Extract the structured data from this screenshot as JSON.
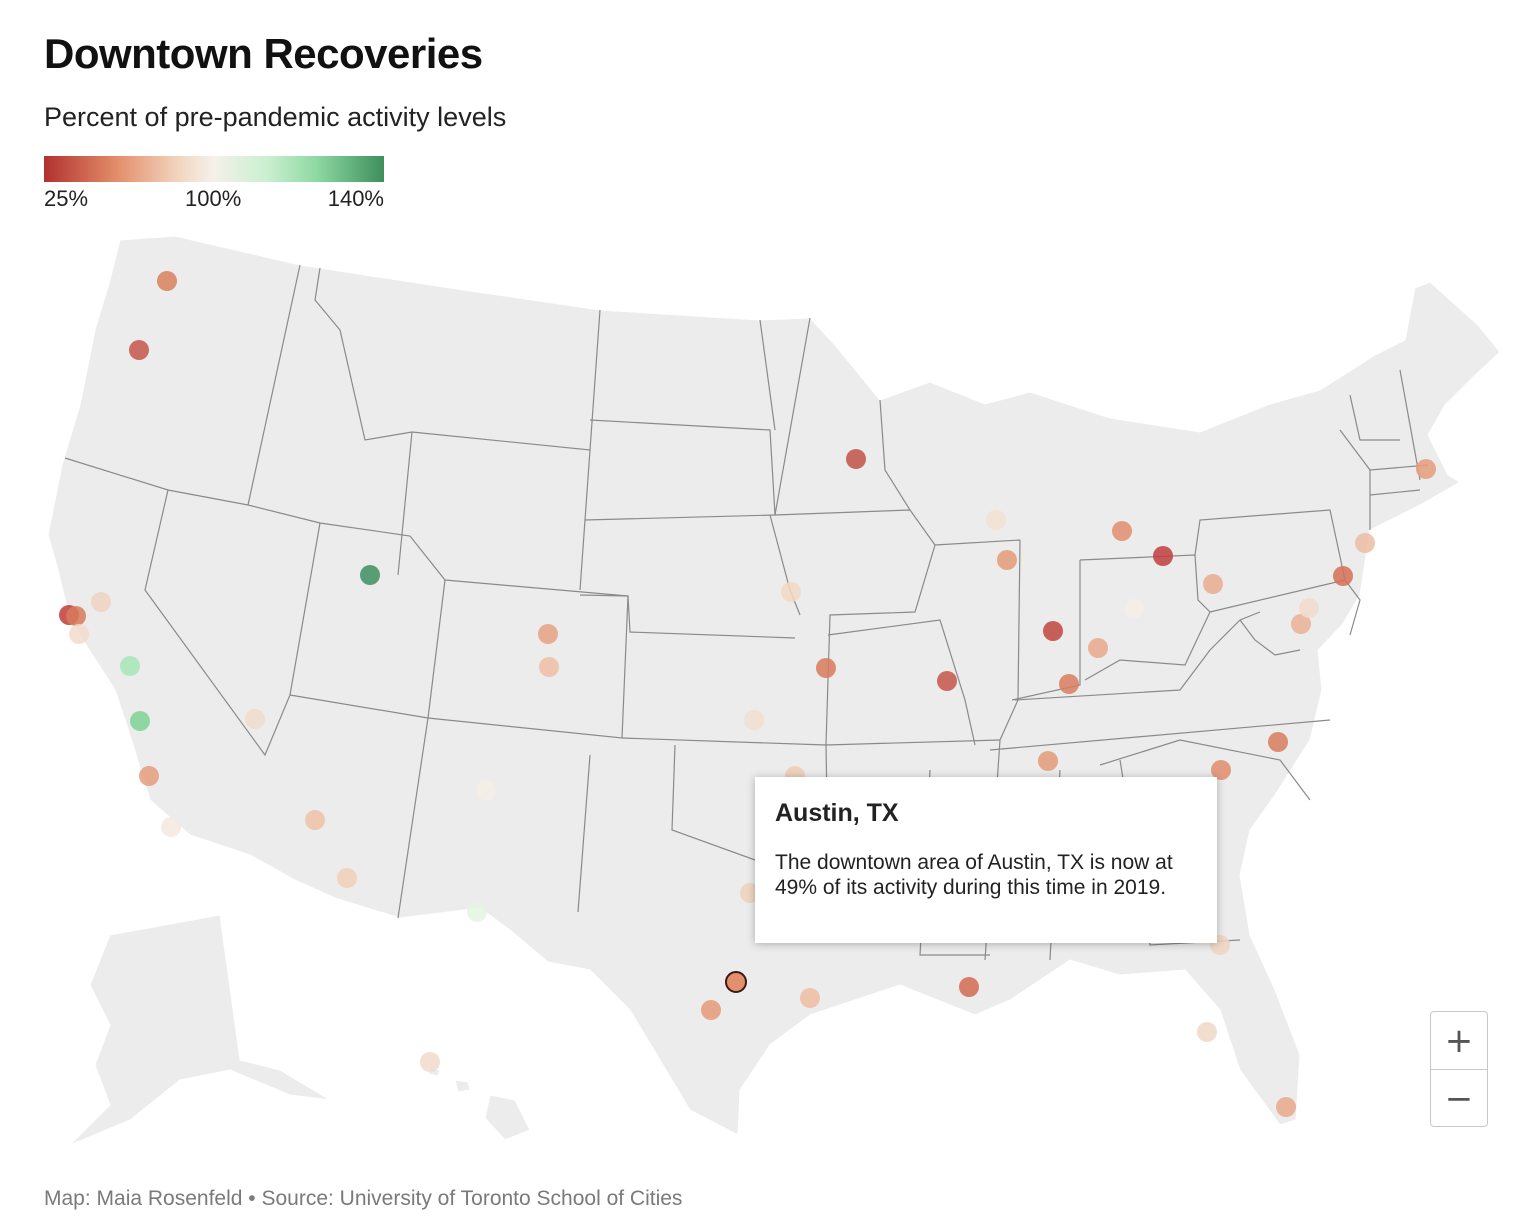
{
  "header": {
    "title": "Downtown Recoveries",
    "subtitle": "Percent of pre-pandemic activity levels"
  },
  "legend": {
    "min_label": "25%",
    "mid_label": "100%",
    "max_label": "140%",
    "colors": [
      "#b2312f",
      "#e4906c",
      "#f2d7c2",
      "#f4f1ea",
      "#c9efcf",
      "#8fd9a3",
      "#3d8f5c"
    ]
  },
  "map": {
    "land_color": "#ececec",
    "border_color": "#8a8a8a",
    "markers": [
      {
        "color": "#d9805f"
      },
      {
        "color": "#c5574a"
      },
      {
        "color": "#bf3c39"
      },
      {
        "color": "#d77a5c"
      },
      {
        "color": "#f0d4c1"
      },
      {
        "color": "#f2dccd"
      },
      {
        "color": "#a6e6b6"
      },
      {
        "color": "#7fd495"
      },
      {
        "color": "#e59d7c"
      },
      {
        "color": "#f3e9df"
      },
      {
        "color": "#f1dccb"
      },
      {
        "color": "#eec2a6"
      },
      {
        "color": "#f1d0b8"
      },
      {
        "color": "#3e9160"
      },
      {
        "color": "#e6a282"
      },
      {
        "color": "#eec0a4"
      },
      {
        "color": "#f4efe6"
      },
      {
        "color": "#e4f4e2"
      },
      {
        "color": "#f2dfd0"
      },
      {
        "color": "#f0ccb6"
      },
      {
        "color": "#d77a5c"
      },
      {
        "color": "#c25248"
      },
      {
        "color": "#f2d9c7"
      },
      {
        "color": "#c4564a"
      },
      {
        "color": "#f2e2d4"
      },
      {
        "color": "#e59a78"
      },
      {
        "color": "#c0463f"
      },
      {
        "color": "#e8a98a"
      },
      {
        "color": "#d97d60"
      },
      {
        "color": "#e49b79"
      },
      {
        "color": "#e28e6d"
      },
      {
        "color": "#e9ac8e"
      },
      {
        "color": "#c0403e"
      },
      {
        "color": "#f4eee6"
      },
      {
        "color": "#eab195"
      },
      {
        "color": "#d66e57"
      },
      {
        "color": "#f2dccb"
      },
      {
        "color": "#ecbda3"
      },
      {
        "color": "#f1d5bf"
      },
      {
        "color": "#d87c5e"
      },
      {
        "color": "#e28d6d"
      },
      {
        "color": "#f0d2bd"
      },
      {
        "color": "#d46b53"
      },
      {
        "color": "#f0d8c7"
      },
      {
        "color": "#eebda1"
      },
      {
        "color": "#e49a78"
      },
      {
        "color": "#f1dacb"
      },
      {
        "color": "#e8a98a"
      },
      {
        "color": "#f1d5c1"
      },
      {
        "color": "#e59d7c"
      }
    ]
  },
  "tooltip": {
    "title": "Austin, TX",
    "body": "The downtown area of Austin, TX is now at 49% of its activity during this time in 2019.",
    "selected_color": "#e38f6e"
  },
  "zoom": {
    "in_label": "+",
    "out_label": "−"
  },
  "credit": "Map: Maia Rosenfeld • Source: University of Toronto School of Cities"
}
